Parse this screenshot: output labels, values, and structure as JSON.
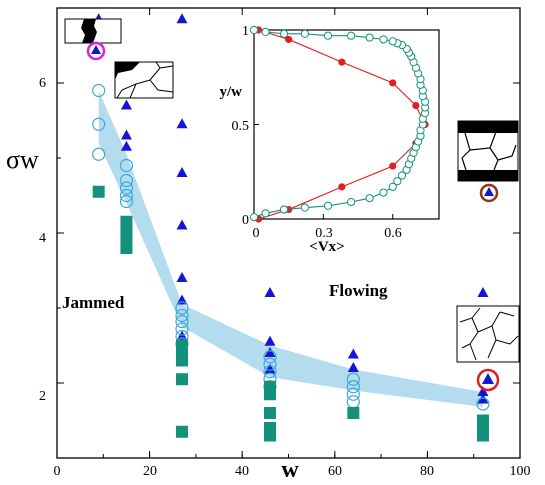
{
  "chart_data": [
    {
      "type": "scatter",
      "xlabel": "w",
      "ylabel": "σw",
      "xlim": [
        0,
        100
      ],
      "ylim": [
        1.0,
        7.0
      ],
      "xticks": [
        "0",
        "20",
        "40",
        "60",
        "80",
        "100"
      ],
      "yticks": [
        "2",
        "4",
        "6"
      ],
      "annotations": [
        "Jammed",
        "Flowing"
      ],
      "colors": {
        "flowing": "#1515d4",
        "jammed": "#14917a",
        "transition": "#3aa8dd",
        "band": "#b4dcef",
        "marker_ring_red": "#e02020",
        "marker_ring_magenta": "#e020d8",
        "marker_ring_brown": "#8a3a16"
      },
      "band": {
        "x": [
          9,
          15,
          27,
          46,
          64,
          92
        ],
        "lower": [
          5.2,
          4.4,
          2.75,
          2.08,
          1.9,
          1.68
        ],
        "upper": [
          5.9,
          5.05,
          3.05,
          2.5,
          2.18,
          1.88
        ]
      },
      "series": [
        {
          "marker": "triangle",
          "x": [
            9,
            15,
            15,
            15,
            27,
            27,
            27,
            27,
            27,
            27,
            27,
            46,
            46,
            46,
            46,
            64,
            64,
            92,
            92,
            92
          ],
          "y": [
            6.85,
            5.7,
            5.3,
            5.15,
            6.85,
            5.45,
            4.8,
            4.1,
            3.4,
            3.1,
            2.62,
            3.2,
            2.55,
            2.4,
            2.18,
            2.38,
            2.2,
            3.2,
            1.88,
            1.78
          ]
        },
        {
          "marker": "circle",
          "x": [
            9,
            9,
            9,
            15,
            15,
            15,
            15,
            15,
            27,
            27,
            27,
            27,
            27,
            27,
            46,
            46,
            46,
            46,
            46,
            64,
            64,
            64,
            64,
            92
          ],
          "y": [
            5.9,
            5.45,
            5.05,
            4.9,
            4.7,
            4.6,
            4.5,
            4.42,
            3.0,
            2.9,
            2.82,
            2.72,
            2.62,
            2.52,
            2.35,
            2.25,
            2.15,
            2.05,
            1.95,
            2.05,
            1.95,
            1.85,
            1.75,
            1.72
          ]
        },
        {
          "marker": "square",
          "x": [
            9,
            15,
            15,
            15,
            15,
            27,
            27,
            27,
            27,
            27,
            46,
            46,
            46,
            46,
            46,
            64,
            92,
            92,
            92
          ],
          "y": [
            4.55,
            4.15,
            4.05,
            3.95,
            3.8,
            2.5,
            2.4,
            2.3,
            2.05,
            1.35,
            1.95,
            1.85,
            1.6,
            1.4,
            1.3,
            1.6,
            1.5,
            1.4,
            1.3
          ]
        }
      ]
    },
    {
      "type": "line",
      "xlabel": "<Vx>",
      "ylabel": "y/w",
      "xlim": [
        0,
        0.8
      ],
      "ylim": [
        0,
        1
      ],
      "xticks": [
        "0",
        "0.3",
        "0.6"
      ],
      "yticks": [
        "0",
        "0.5",
        "1"
      ],
      "series": [
        {
          "marker": "filled-dot",
          "color": "#e02020",
          "x": [
            0.02,
            0.15,
            0.38,
            0.6,
            0.7,
            0.74,
            0.7,
            0.6,
            0.38,
            0.15,
            0.02
          ],
          "y": [
            0.0,
            0.05,
            0.17,
            0.28,
            0.4,
            0.5,
            0.6,
            0.72,
            0.83,
            0.95,
            1.0
          ]
        },
        {
          "marker": "open-circle",
          "color": "#14917a",
          "x": [
            0.0,
            0.05,
            0.13,
            0.22,
            0.32,
            0.42,
            0.5,
            0.56,
            0.6,
            0.62,
            0.64,
            0.66,
            0.67,
            0.68,
            0.69,
            0.7,
            0.71,
            0.72,
            0.72,
            0.73,
            0.73,
            0.74,
            0.74,
            0.74,
            0.73,
            0.73,
            0.72,
            0.72,
            0.71,
            0.7,
            0.69,
            0.68,
            0.67,
            0.66,
            0.64,
            0.62,
            0.6,
            0.56,
            0.5,
            0.42,
            0.32,
            0.22,
            0.13,
            0.05,
            0.0
          ],
          "y": [
            0.01,
            0.03,
            0.05,
            0.06,
            0.07,
            0.09,
            0.11,
            0.14,
            0.17,
            0.2,
            0.23,
            0.26,
            0.29,
            0.32,
            0.35,
            0.38,
            0.41,
            0.44,
            0.47,
            0.5,
            0.53,
            0.56,
            0.59,
            0.62,
            0.65,
            0.68,
            0.71,
            0.74,
            0.77,
            0.8,
            0.83,
            0.86,
            0.88,
            0.9,
            0.92,
            0.93,
            0.94,
            0.95,
            0.96,
            0.97,
            0.97,
            0.98,
            0.98,
            0.99,
            1.0
          ]
        }
      ]
    }
  ]
}
